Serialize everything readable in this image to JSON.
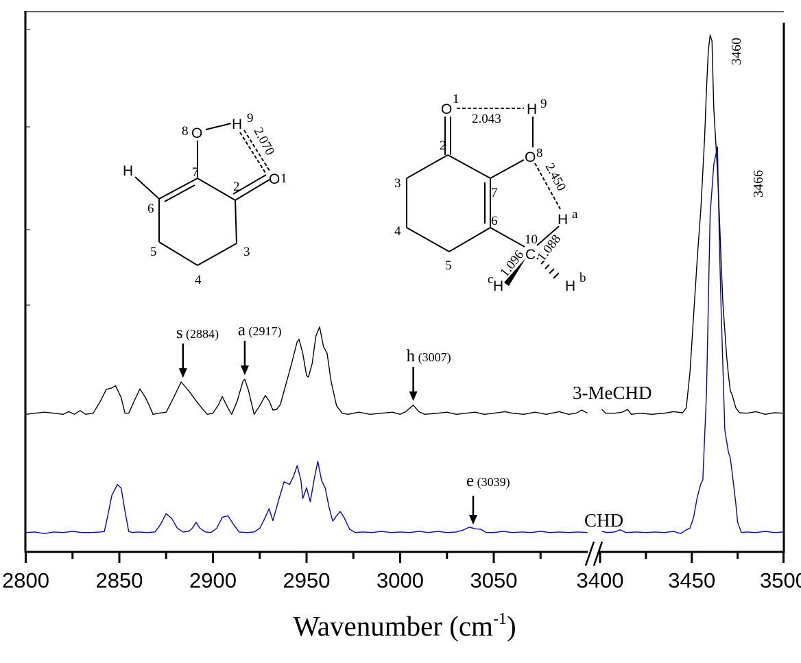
{
  "chart_data": {
    "type": "line",
    "xlabel": "Wavenumber (cm",
    "xlabel_superscript": "-1",
    "xlabel_close": ")",
    "ylabel": "",
    "x_axis": {
      "broken": true,
      "segments": [
        [
          2800,
          3100
        ],
        [
          3395,
          3500
        ]
      ],
      "tick_labels": [
        "2800",
        "2850",
        "2900",
        "2950",
        "3000",
        "3050",
        "3400",
        "3450",
        "3500"
      ],
      "major_ticks": [
        2800,
        2850,
        2900,
        2950,
        3000,
        3050,
        3400,
        3450,
        3500
      ],
      "minor_ticks": [
        2825,
        2875,
        2925,
        2975,
        3025,
        3075,
        3425,
        3475
      ]
    },
    "ylim": [
      0,
      100
    ],
    "y_tick_labels": false,
    "grid": false,
    "series": [
      {
        "name": "3-MeCHD",
        "color": "#000000",
        "points": [
          [
            2800,
            25.5
          ],
          [
            2805,
            25.7
          ],
          [
            2810,
            25.9
          ],
          [
            2815,
            25.7
          ],
          [
            2820,
            25.5
          ],
          [
            2823,
            26.0
          ],
          [
            2826,
            25.5
          ],
          [
            2829,
            26.2
          ],
          [
            2832,
            25.5
          ],
          [
            2836,
            25.7
          ],
          [
            2840,
            28.0
          ],
          [
            2843,
            30.1
          ],
          [
            2846,
            30.4
          ],
          [
            2848,
            30.8
          ],
          [
            2851,
            28.6
          ],
          [
            2853,
            25.7
          ],
          [
            2855,
            25.7
          ],
          [
            2858,
            28.0
          ],
          [
            2861,
            30.2
          ],
          [
            2864,
            28.6
          ],
          [
            2866,
            27.1
          ],
          [
            2868,
            25.5
          ],
          [
            2871,
            25.7
          ],
          [
            2875,
            25.9
          ],
          [
            2879,
            28.6
          ],
          [
            2883,
            31.5
          ],
          [
            2887,
            29.9
          ],
          [
            2891,
            28.0
          ],
          [
            2894,
            26.7
          ],
          [
            2897,
            25.5
          ],
          [
            2900,
            25.7
          ],
          [
            2903,
            27.3
          ],
          [
            2905,
            28.8
          ],
          [
            2908,
            26.7
          ],
          [
            2910,
            25.5
          ],
          [
            2913,
            28.0
          ],
          [
            2916,
            31.6
          ],
          [
            2917,
            32.0
          ],
          [
            2919,
            29.9
          ],
          [
            2922,
            25.5
          ],
          [
            2925,
            27.1
          ],
          [
            2928,
            29.0
          ],
          [
            2930,
            28.0
          ],
          [
            2932,
            26.3
          ],
          [
            2934,
            26.4
          ],
          [
            2936,
            27.3
          ],
          [
            2939,
            31.1
          ],
          [
            2942,
            34.9
          ],
          [
            2945,
            39.0
          ],
          [
            2946,
            39.4
          ],
          [
            2948,
            36.8
          ],
          [
            2950,
            32.7
          ],
          [
            2951,
            32.4
          ],
          [
            2953,
            34.9
          ],
          [
            2955,
            40.0
          ],
          [
            2957,
            41.7
          ],
          [
            2959,
            38.1
          ],
          [
            2961,
            36.8
          ],
          [
            2963,
            31.8
          ],
          [
            2966,
            27.1
          ],
          [
            2969,
            25.7
          ],
          [
            2972,
            25.5
          ],
          [
            2978,
            25.9
          ],
          [
            2984,
            25.5
          ],
          [
            2990,
            25.7
          ],
          [
            2996,
            25.9
          ],
          [
            3000,
            25.5
          ],
          [
            3003,
            26.0
          ],
          [
            3007,
            27.2
          ],
          [
            3010,
            26.0
          ],
          [
            3013,
            25.5
          ],
          [
            3020,
            25.7
          ],
          [
            3025,
            25.9
          ],
          [
            3030,
            25.5
          ],
          [
            3040,
            25.9
          ],
          [
            3045,
            25.5
          ],
          [
            3050,
            25.7
          ],
          [
            3056,
            26.0
          ],
          [
            3060,
            25.7
          ],
          [
            3066,
            25.5
          ],
          [
            3072,
            25.9
          ],
          [
            3078,
            25.5
          ],
          [
            3085,
            26.0
          ],
          [
            3090,
            25.5
          ],
          [
            3094,
            25.7
          ],
          [
            3097,
            26.3
          ],
          [
            3100,
            25.7
          ],
          [
            3401,
            26.4
          ],
          [
            3403,
            25.7
          ],
          [
            3408,
            25.7
          ],
          [
            3412,
            25.9
          ],
          [
            3415,
            26.4
          ],
          [
            3417,
            25.5
          ],
          [
            3422,
            25.7
          ],
          [
            3428,
            25.5
          ],
          [
            3435,
            25.7
          ],
          [
            3440,
            26.0
          ],
          [
            3445,
            25.8
          ],
          [
            3447,
            26.7
          ],
          [
            3449,
            33.3
          ],
          [
            3451,
            43.8
          ],
          [
            3453,
            54.5
          ],
          [
            3455,
            63.8
          ],
          [
            3457,
            76.9
          ],
          [
            3458,
            85.8
          ],
          [
            3459,
            92.8
          ],
          [
            3460,
            95.8
          ],
          [
            3461,
            94.7
          ],
          [
            3462,
            82.3
          ],
          [
            3464,
            70.5
          ],
          [
            3465,
            62.5
          ],
          [
            3466,
            54.0
          ],
          [
            3467,
            45.9
          ],
          [
            3469,
            36.2
          ],
          [
            3470,
            32.7
          ],
          [
            3471,
            29.9
          ],
          [
            3472,
            29.1
          ],
          [
            3474,
            26.7
          ],
          [
            3476,
            25.8
          ],
          [
            3480,
            25.7
          ],
          [
            3485,
            26.0
          ],
          [
            3490,
            25.5
          ],
          [
            3495,
            25.8
          ],
          [
            3500,
            25.7
          ]
        ]
      },
      {
        "name": "CHD",
        "color": "#0000cc",
        "points": [
          [
            2800,
            3.6
          ],
          [
            2805,
            3.7
          ],
          [
            2810,
            3.4
          ],
          [
            2815,
            3.7
          ],
          [
            2820,
            3.6
          ],
          [
            2825,
            3.8
          ],
          [
            2830,
            3.6
          ],
          [
            2835,
            3.6
          ],
          [
            2840,
            3.7
          ],
          [
            2842,
            3.8
          ],
          [
            2844,
            7.0
          ],
          [
            2846,
            10.5
          ],
          [
            2849,
            12.5
          ],
          [
            2851,
            11.8
          ],
          [
            2853,
            7.6
          ],
          [
            2855,
            3.8
          ],
          [
            2857,
            3.6
          ],
          [
            2860,
            3.7
          ],
          [
            2865,
            3.6
          ],
          [
            2869,
            3.7
          ],
          [
            2872,
            5.1
          ],
          [
            2875,
            7.1
          ],
          [
            2878,
            6.2
          ],
          [
            2881,
            4.4
          ],
          [
            2884,
            3.7
          ],
          [
            2887,
            3.8
          ],
          [
            2889,
            4.4
          ],
          [
            2891,
            5.5
          ],
          [
            2893,
            4.4
          ],
          [
            2896,
            3.7
          ],
          [
            2899,
            3.6
          ],
          [
            2902,
            4.4
          ],
          [
            2905,
            6.4
          ],
          [
            2908,
            6.7
          ],
          [
            2911,
            5.1
          ],
          [
            2914,
            3.7
          ],
          [
            2918,
            3.6
          ],
          [
            2922,
            3.7
          ],
          [
            2925,
            4.4
          ],
          [
            2927,
            5.7
          ],
          [
            2930,
            8.0
          ],
          [
            2932,
            5.8
          ],
          [
            2935,
            9.5
          ],
          [
            2938,
            13.0
          ],
          [
            2941,
            12.5
          ],
          [
            2943,
            14.0
          ],
          [
            2945,
            16.0
          ],
          [
            2947,
            13.3
          ],
          [
            2948,
            9.9
          ],
          [
            2950,
            11.9
          ],
          [
            2952,
            9.3
          ],
          [
            2954,
            13.3
          ],
          [
            2956,
            16.8
          ],
          [
            2958,
            13.3
          ],
          [
            2960,
            11.8
          ],
          [
            2962,
            8.3
          ],
          [
            2964,
            5.7
          ],
          [
            2966,
            6.7
          ],
          [
            2968,
            7.5
          ],
          [
            2970,
            6.4
          ],
          [
            2973,
            4.2
          ],
          [
            2976,
            3.6
          ],
          [
            2980,
            3.7
          ],
          [
            2985,
            3.6
          ],
          [
            2990,
            3.8
          ],
          [
            2995,
            3.6
          ],
          [
            3000,
            3.7
          ],
          [
            3005,
            3.6
          ],
          [
            3010,
            3.8
          ],
          [
            3015,
            3.6
          ],
          [
            3020,
            3.8
          ],
          [
            3025,
            3.6
          ],
          [
            3030,
            3.7
          ],
          [
            3034,
            4.1
          ],
          [
            3037,
            4.6
          ],
          [
            3040,
            4.3
          ],
          [
            3043,
            4.2
          ],
          [
            3046,
            3.6
          ],
          [
            3050,
            3.6
          ],
          [
            3055,
            3.8
          ],
          [
            3060,
            3.6
          ],
          [
            3065,
            3.7
          ],
          [
            3070,
            3.6
          ],
          [
            3075,
            3.8
          ],
          [
            3080,
            3.6
          ],
          [
            3085,
            3.7
          ],
          [
            3090,
            3.6
          ],
          [
            3095,
            3.7
          ],
          [
            3100,
            3.6
          ],
          [
            3401,
            3.8
          ],
          [
            3404,
            3.6
          ],
          [
            3408,
            3.7
          ],
          [
            3411,
            4.1
          ],
          [
            3414,
            3.6
          ],
          [
            3420,
            3.7
          ],
          [
            3425,
            3.6
          ],
          [
            3430,
            3.7
          ],
          [
            3435,
            3.6
          ],
          [
            3440,
            3.8
          ],
          [
            3444,
            3.4
          ],
          [
            3447,
            4.1
          ],
          [
            3449,
            4.4
          ],
          [
            3451,
            6.4
          ],
          [
            3453,
            10.2
          ],
          [
            3455,
            12.7
          ],
          [
            3456,
            13.3
          ],
          [
            3458,
            29.4
          ],
          [
            3460,
            62.5
          ],
          [
            3462,
            71.8
          ],
          [
            3464,
            75.1
          ],
          [
            3465,
            57.8
          ],
          [
            3466,
            45.1
          ],
          [
            3468,
            22.6
          ],
          [
            3470,
            18.4
          ],
          [
            3471,
            17.4
          ],
          [
            3472,
            14.7
          ],
          [
            3474,
            8.9
          ],
          [
            3475,
            5.5
          ],
          [
            3477,
            3.6
          ],
          [
            3480,
            3.7
          ],
          [
            3485,
            3.6
          ],
          [
            3490,
            3.8
          ],
          [
            3495,
            3.6
          ],
          [
            3500,
            3.7
          ]
        ]
      }
    ],
    "annotations": [
      {
        "letter": "s",
        "value": "(2884)",
        "x": 2884,
        "arrow": true,
        "series": "3-MeCHD"
      },
      {
        "letter": "a",
        "value": "(2917)",
        "x": 2917,
        "arrow": true,
        "series": "3-MeCHD"
      },
      {
        "letter": "h",
        "value": "(3007)",
        "x": 3007,
        "arrow": true,
        "series": "3-MeCHD"
      },
      {
        "letter": "e",
        "value": "(3039)",
        "x": 3039,
        "arrow": true,
        "series": "CHD"
      }
    ],
    "peak_labels": [
      {
        "text": "3460",
        "x": 3460,
        "series": "3-MeCHD"
      },
      {
        "text": "3466",
        "x": 3466,
        "series": "CHD"
      }
    ],
    "series_labels": [
      "3-MeCHD",
      "CHD"
    ]
  },
  "structures": {
    "chd": {
      "atoms": [
        "O",
        "H",
        "O",
        "H"
      ],
      "numbers": [
        "8",
        "9",
        "1",
        "7",
        "2",
        "6",
        "5",
        "4",
        "3"
      ],
      "distance": "2.070"
    },
    "mechd": {
      "atoms": [
        "O",
        "H",
        "O",
        "H",
        "C",
        "H",
        "H"
      ],
      "numbers": [
        "1",
        "9",
        "8",
        "2",
        "7",
        "6",
        "3",
        "4",
        "5",
        "10",
        "a",
        "b",
        "c"
      ],
      "distances": [
        "2.043",
        "2.450",
        "1.088",
        "1.096"
      ]
    }
  }
}
